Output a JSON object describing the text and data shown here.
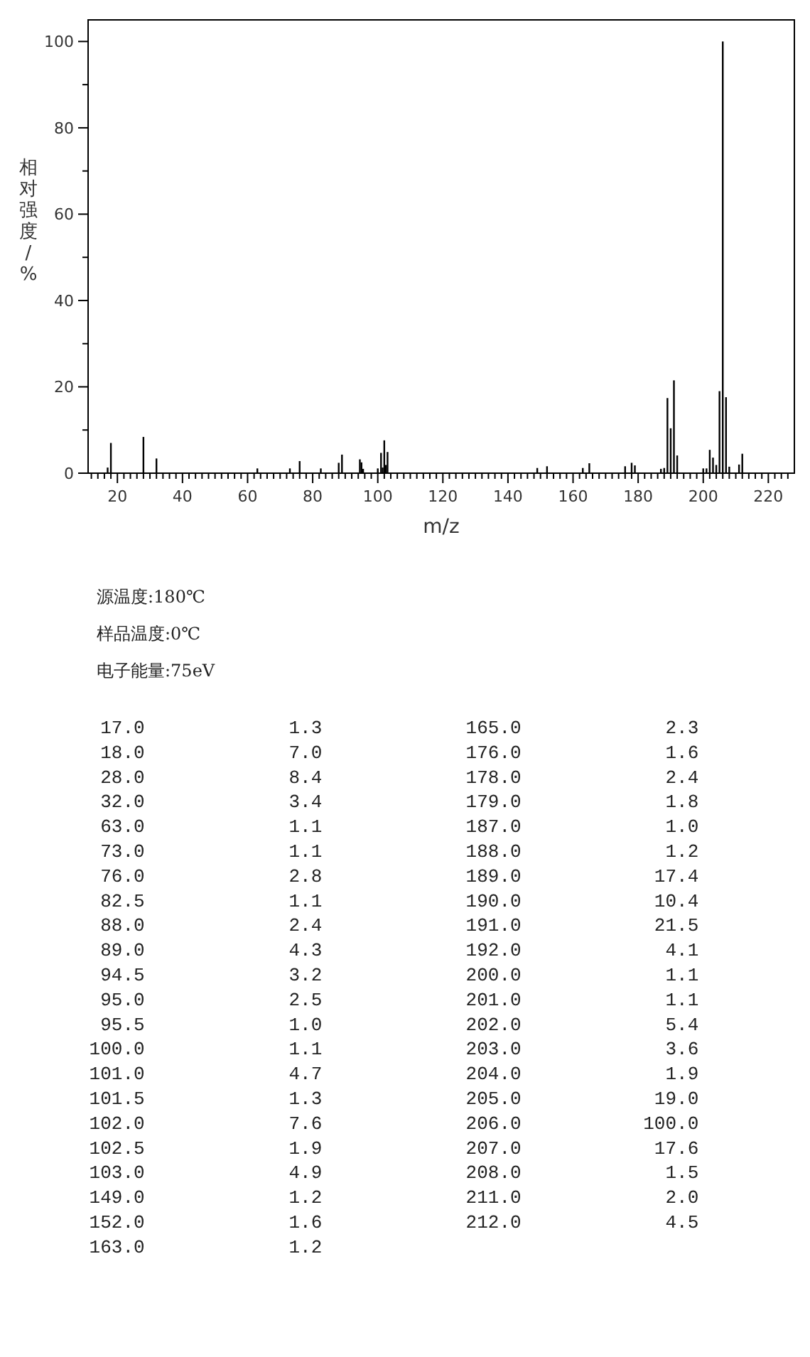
{
  "chart_data": {
    "type": "bar",
    "xlabel": "m/z",
    "ylabel": "相对强度/%",
    "x": [
      17.0,
      18.0,
      28.0,
      32.0,
      63.0,
      73.0,
      76.0,
      82.5,
      88.0,
      89.0,
      94.5,
      95.0,
      95.5,
      100.0,
      101.0,
      101.5,
      102.0,
      102.5,
      103.0,
      149.0,
      152.0,
      163.0,
      165.0,
      176.0,
      178.0,
      179.0,
      187.0,
      188.0,
      189.0,
      190.0,
      191.0,
      192.0,
      200.0,
      201.0,
      202.0,
      203.0,
      204.0,
      205.0,
      206.0,
      207.0,
      208.0,
      211.0,
      212.0
    ],
    "values": [
      1.3,
      7.0,
      8.4,
      3.4,
      1.1,
      1.1,
      2.8,
      1.1,
      2.4,
      4.3,
      3.2,
      2.5,
      1.0,
      1.1,
      4.7,
      1.3,
      7.6,
      1.9,
      4.9,
      1.2,
      1.6,
      1.2,
      2.3,
      1.6,
      2.4,
      1.8,
      1.0,
      1.2,
      17.4,
      10.4,
      21.5,
      4.1,
      1.1,
      1.1,
      5.4,
      3.6,
      1.9,
      19.0,
      100.0,
      17.6,
      1.5,
      2.0,
      4.5
    ],
    "color": "#000000",
    "xlim": [
      11,
      228
    ],
    "ylim": [
      0,
      105
    ],
    "xticks": [
      {
        "value": 12,
        "label": null
      },
      {
        "value": 14,
        "label": null
      },
      {
        "value": 16,
        "label": null
      },
      {
        "value": 18,
        "label": null
      },
      20,
      {
        "value": 22,
        "label": null
      },
      {
        "value": 24,
        "label": null
      },
      {
        "value": 26,
        "label": null
      },
      {
        "value": 28,
        "label": null
      },
      {
        "value": 30,
        "label": null
      },
      {
        "value": 32,
        "label": null
      },
      {
        "value": 34,
        "label": null
      },
      {
        "value": 36,
        "label": null
      },
      {
        "value": 38,
        "label": null
      },
      40,
      {
        "value": 42,
        "label": null
      },
      {
        "value": 44,
        "label": null
      },
      {
        "value": 46,
        "label": null
      },
      {
        "value": 48,
        "label": null
      },
      {
        "value": 50,
        "label": null
      },
      {
        "value": 52,
        "label": null
      },
      {
        "value": 54,
        "label": null
      },
      {
        "value": 56,
        "label": null
      },
      {
        "value": 58,
        "label": null
      },
      60,
      {
        "value": 62,
        "label": null
      },
      {
        "value": 64,
        "label": null
      },
      {
        "value": 66,
        "label": null
      },
      {
        "value": 68,
        "label": null
      },
      {
        "value": 70,
        "label": null
      },
      {
        "value": 72,
        "label": null
      },
      {
        "value": 74,
        "label": null
      },
      {
        "value": 76,
        "label": null
      },
      {
        "value": 78,
        "label": null
      },
      80,
      {
        "value": 82,
        "label": null
      },
      {
        "value": 84,
        "label": null
      },
      {
        "value": 86,
        "label": null
      },
      {
        "value": 88,
        "label": null
      },
      {
        "value": 90,
        "label": null
      },
      {
        "value": 92,
        "label": null
      },
      {
        "value": 94,
        "label": null
      },
      {
        "value": 96,
        "label": null
      },
      {
        "value": 98,
        "label": null
      },
      100,
      {
        "value": 102,
        "label": null
      },
      {
        "value": 104,
        "label": null
      },
      {
        "value": 106,
        "label": null
      },
      {
        "value": 108,
        "label": null
      },
      {
        "value": 110,
        "label": null
      },
      {
        "value": 112,
        "label": null
      },
      {
        "value": 114,
        "label": null
      },
      {
        "value": 116,
        "label": null
      },
      {
        "value": 118,
        "label": null
      },
      120,
      {
        "value": 122,
        "label": null
      },
      {
        "value": 124,
        "label": null
      },
      {
        "value": 126,
        "label": null
      },
      {
        "value": 128,
        "label": null
      },
      {
        "value": 130,
        "label": null
      },
      {
        "value": 132,
        "label": null
      },
      {
        "value": 134,
        "label": null
      },
      {
        "value": 136,
        "label": null
      },
      {
        "value": 138,
        "label": null
      },
      140,
      {
        "value": 142,
        "label": null
      },
      {
        "value": 144,
        "label": null
      },
      {
        "value": 146,
        "label": null
      },
      {
        "value": 148,
        "label": null
      },
      {
        "value": 150,
        "label": null
      },
      {
        "value": 152,
        "label": null
      },
      {
        "value": 154,
        "label": null
      },
      {
        "value": 156,
        "label": null
      },
      {
        "value": 158,
        "label": null
      },
      160,
      {
        "value": 162,
        "label": null
      },
      {
        "value": 164,
        "label": null
      },
      {
        "value": 166,
        "label": null
      },
      {
        "value": 168,
        "label": null
      },
      {
        "value": 170,
        "label": null
      },
      {
        "value": 172,
        "label": null
      },
      {
        "value": 174,
        "label": null
      },
      {
        "value": 176,
        "label": null
      },
      {
        "value": 178,
        "label": null
      },
      180,
      {
        "value": 182,
        "label": null
      },
      {
        "value": 184,
        "label": null
      },
      {
        "value": 186,
        "label": null
      },
      {
        "value": 188,
        "label": null
      },
      {
        "value": 190,
        "label": null
      },
      {
        "value": 192,
        "label": null
      },
      {
        "value": 194,
        "label": null
      },
      {
        "value": 196,
        "label": null
      },
      {
        "value": 198,
        "label": null
      },
      200,
      {
        "value": 202,
        "label": null
      },
      {
        "value": 204,
        "label": null
      },
      {
        "value": 206,
        "label": null
      },
      {
        "value": 208,
        "label": null
      },
      {
        "value": 210,
        "label": null
      },
      {
        "value": 212,
        "label": null
      },
      {
        "value": 214,
        "label": null
      },
      {
        "value": 216,
        "label": null
      },
      {
        "value": 218,
        "label": null
      },
      220,
      {
        "value": 222,
        "label": null
      },
      {
        "value": 224,
        "label": null
      },
      {
        "value": 226,
        "label": null
      }
    ],
    "yticks": [
      0,
      {
        "value": 10,
        "label": null
      },
      20,
      {
        "value": 30,
        "label": null
      },
      40,
      {
        "value": 50,
        "label": null
      },
      60,
      {
        "value": 70,
        "label": null
      },
      80,
      {
        "value": 90,
        "label": null
      },
      100
    ],
    "grid": false,
    "annotations": [
      "源温度:180℃",
      "样品温度:0℃",
      "电子能量:75eV",
      "17.0 1.3",
      "18.0 7.0",
      "28.0 8.4",
      "32.0 3.4",
      "63.0 1.1",
      "73.0 1.1",
      "76.0 2.8",
      "82.5 1.1",
      "88.0 2.4",
      "89.0 4.3",
      "94.5 3.2",
      "95.0 2.5",
      "95.5 1.0",
      "100.0 1.1",
      "101.0 4.7",
      "101.5 1.3",
      "102.0 7.6",
      "102.5 1.9",
      "103.0 4.9",
      "149.0 1.2",
      "152.0 1.6",
      "163.0 1.2",
      "165.0 2.3",
      "176.0 1.6",
      "178.0 2.4",
      "179.0 1.8",
      "187.0 1.0",
      "188.0 1.2",
      "189.0 17.4",
      "190.0 10.4",
      "191.0 21.5",
      "192.0 4.1",
      "200.0 1.1",
      "201.0 1.1",
      "202.0 5.4",
      "203.0 3.6",
      "204.0 1.9",
      "205.0 19.0",
      "206.0 100.0",
      "207.0 17.6",
      "208.0 1.5",
      "211.0 2.0",
      "212.0 4.5"
    ]
  }
}
